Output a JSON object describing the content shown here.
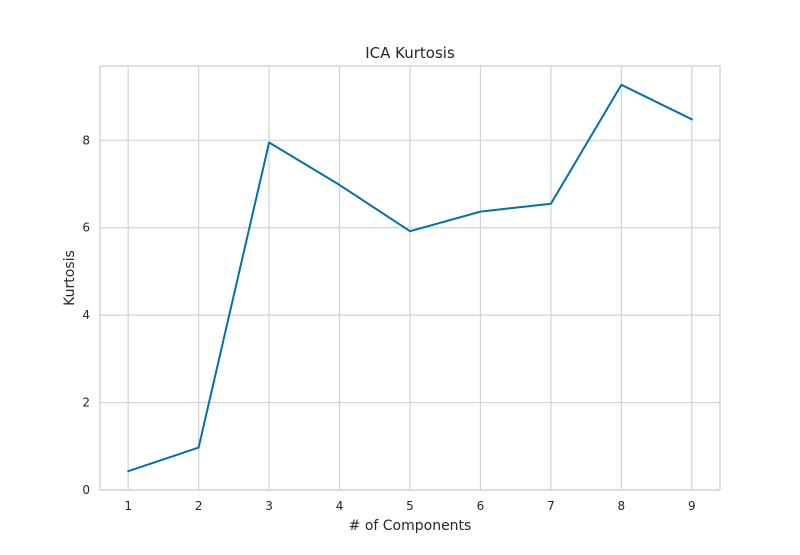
{
  "chart_data": {
    "type": "line",
    "title": "ICA Kurtosis",
    "xlabel": "# of Components",
    "ylabel": "Kurtosis",
    "x": [
      1,
      2,
      3,
      4,
      5,
      6,
      7,
      8,
      9
    ],
    "x_ticks": [
      "1",
      "2",
      "3",
      "4",
      "5",
      "6",
      "7",
      "8",
      "9"
    ],
    "y_ticks": [
      "0",
      "2",
      "4",
      "6",
      "8"
    ],
    "xlim": [
      0.6,
      9.4
    ],
    "ylim": [
      0,
      9.7
    ],
    "grid": true,
    "series": [
      {
        "values": [
          0.43,
          0.97,
          7.95,
          6.98,
          5.92,
          6.37,
          6.55,
          9.27,
          8.48
        ],
        "color": "#0072a8"
      }
    ],
    "colors": {
      "grid": "#d2d2d2",
      "spine": "#cccccc",
      "text": "#262626"
    }
  }
}
